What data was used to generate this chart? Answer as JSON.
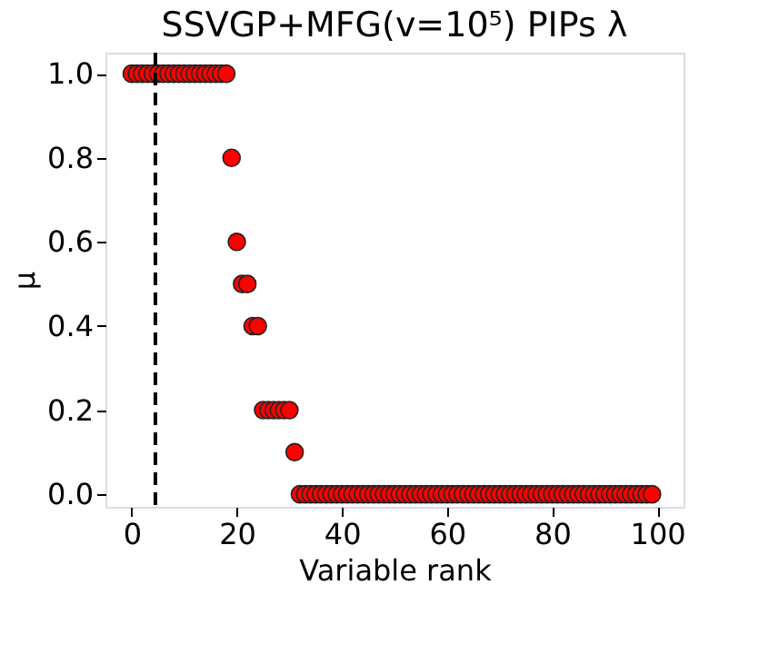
{
  "chart_data": {
    "type": "scatter",
    "title": "SSVGP+MFG(v=10⁵) PIPs λ",
    "xlabel": "Variable rank",
    "ylabel": "μ",
    "x": [
      0,
      1,
      2,
      3,
      4,
      5,
      6,
      7,
      8,
      9,
      10,
      11,
      12,
      13,
      14,
      15,
      16,
      17,
      18,
      19,
      20,
      21,
      22,
      23,
      24,
      25,
      26,
      27,
      28,
      29,
      30,
      31,
      32,
      33,
      34,
      35,
      36,
      37,
      38,
      39,
      40,
      41,
      42,
      43,
      44,
      45,
      46,
      47,
      48,
      49,
      50,
      51,
      52,
      53,
      54,
      55,
      56,
      57,
      58,
      59,
      60,
      61,
      62,
      63,
      64,
      65,
      66,
      67,
      68,
      69,
      70,
      71,
      72,
      73,
      74,
      75,
      76,
      77,
      78,
      79,
      80,
      81,
      82,
      83,
      84,
      85,
      86,
      87,
      88,
      89,
      90,
      91,
      92,
      93,
      94,
      95,
      96,
      97,
      98,
      99
    ],
    "series": [
      {
        "color": "#ff0000",
        "values": [
          1.0,
          1.0,
          1.0,
          1.0,
          1.0,
          1.0,
          1.0,
          1.0,
          1.0,
          1.0,
          1.0,
          1.0,
          1.0,
          1.0,
          1.0,
          1.0,
          1.0,
          1.0,
          1.0,
          0.8,
          0.6,
          0.5,
          0.5,
          0.4,
          0.4,
          0.2,
          0.2,
          0.2,
          0.2,
          0.2,
          0.2,
          0.1,
          0,
          0,
          0,
          0,
          0,
          0,
          0,
          0,
          0,
          0,
          0,
          0,
          0,
          0,
          0,
          0,
          0,
          0,
          0,
          0,
          0,
          0,
          0,
          0,
          0,
          0,
          0,
          0,
          0,
          0,
          0,
          0,
          0,
          0,
          0,
          0,
          0,
          0,
          0,
          0,
          0,
          0,
          0,
          0,
          0,
          0,
          0,
          0,
          0,
          0,
          0,
          0,
          0,
          0,
          0,
          0,
          0,
          0,
          0,
          0,
          0,
          0,
          0,
          0,
          0,
          0,
          0,
          0
        ]
      }
    ],
    "xlim": [
      -5,
      105
    ],
    "xticks": [
      0,
      20,
      40,
      60,
      80,
      100
    ],
    "ylim": [
      -0.03,
      1.05
    ],
    "yticks": [
      {
        "value": 0,
        "label": "0.0"
      },
      {
        "value": 0.2,
        "label": "0.2"
      },
      {
        "value": 0.4,
        "label": "0.4"
      },
      {
        "value": 0.6,
        "label": "0.6"
      },
      {
        "value": 0.8,
        "label": "0.8"
      },
      {
        "value": 1,
        "label": "1.0"
      }
    ],
    "ref_lines": [
      {
        "axis": "x",
        "value": 4.5,
        "color": "#000000",
        "line_style": "dashed"
      }
    ],
    "marker": "circle",
    "grid": false
  }
}
